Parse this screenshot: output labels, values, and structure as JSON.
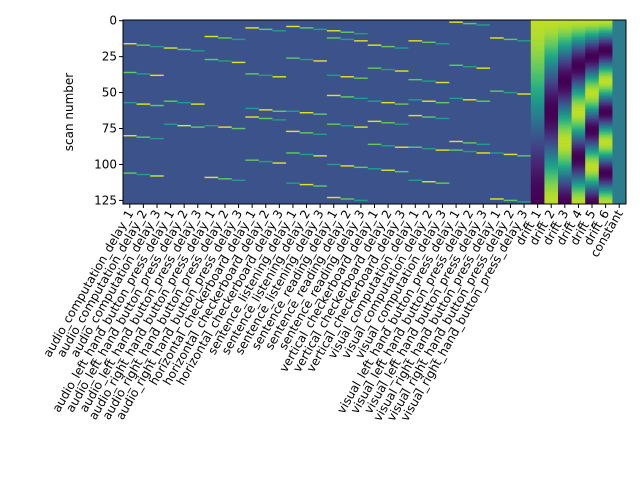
{
  "chart_data": {
    "type": "heatmap",
    "title": "",
    "xlabel": "",
    "ylabel": "scan number",
    "y_ticks": [
      0,
      25,
      50,
      75,
      100,
      125
    ],
    "n_scans": 128,
    "colormap": "viridis",
    "regressors": [
      "audio_computation_delay_1",
      "audio_computation_delay_2",
      "audio_computation_delay_3",
      "audio_left_hand_button_press_delay_1",
      "audio_left_hand_button_press_delay_2",
      "audio_left_hand_button_press_delay_3",
      "audio_right_hand_button_press_delay_1",
      "audio_right_hand_button_press_delay_2",
      "audio_right_hand_button_press_delay_3",
      "horizontal_checkerboard_delay_1",
      "horizontal_checkerboard_delay_2",
      "horizontal_checkerboard_delay_3",
      "sentence_listening_delay_1",
      "sentence_listening_delay_2",
      "sentence_listening_delay_3",
      "sentence_reading_delay_1",
      "sentence_reading_delay_2",
      "sentence_reading_delay_3",
      "vertical_checkerboard_delay_1",
      "vertical_checkerboard_delay_2",
      "vertical_checkerboard_delay_3",
      "visual_computation_delay_1",
      "visual_computation_delay_2",
      "visual_computation_delay_3",
      "visual_left_hand_button_press_delay_1",
      "visual_left_hand_button_press_delay_2",
      "visual_left_hand_button_press_delay_3",
      "visual_right_hand_button_press_delay_1",
      "visual_right_hand_button_press_delay_2",
      "visual_right_hand_button_press_delay_3",
      "drift_1",
      "drift_2",
      "drift_3",
      "drift_4",
      "drift_5",
      "drift_6",
      "constant"
    ],
    "condition_onsets": {
      "audio_computation": [
        16,
        36,
        57,
        80,
        106
      ],
      "audio_left_hand_button_press": [
        19,
        56,
        72
      ],
      "audio_right_hand_button_press": [
        11,
        27,
        73,
        109
      ],
      "horizontal_checkerboard": [
        5,
        37,
        61,
        67,
        97
      ],
      "sentence_listening": [
        4,
        26,
        63,
        77,
        92,
        113
      ],
      "sentence_reading": [
        7,
        12,
        38,
        52,
        72,
        100,
        123
      ],
      "vertical_checkerboard": [
        17,
        33,
        56,
        70,
        86,
        103
      ],
      "visual_computation": [
        14,
        41,
        55,
        66,
        88,
        111
      ],
      "visual_left_hand_button_press": [
        1,
        31,
        54,
        84,
        90
      ],
      "visual_right_hand_button_press": [
        12,
        49,
        92,
        124
      ],
      "visual_right_hand_button_press_extra": [
        8,
        29,
        97,
        116
      ]
    },
    "colors": {
      "background": "#3b528b",
      "low": "#440154",
      "mid": "#21918c",
      "high": "#fde725",
      "drift_base": "#2c7c8e"
    }
  }
}
